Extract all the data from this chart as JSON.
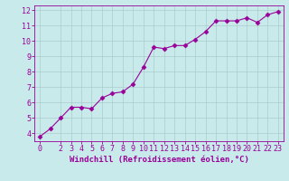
{
  "x": [
    0,
    1,
    2,
    3,
    4,
    5,
    6,
    7,
    8,
    9,
    10,
    11,
    12,
    13,
    14,
    15,
    16,
    17,
    18,
    19,
    20,
    21,
    22,
    23
  ],
  "y": [
    3.8,
    4.3,
    5.0,
    5.7,
    5.7,
    5.6,
    6.3,
    6.6,
    6.7,
    7.2,
    8.3,
    9.6,
    9.5,
    9.7,
    9.7,
    10.1,
    10.6,
    11.3,
    11.3,
    11.3,
    11.5,
    11.2,
    11.7,
    11.9
  ],
  "line_color": "#990099",
  "marker": "D",
  "marker_size": 2.5,
  "background_color": "#c8eaea",
  "grid_color": "#aacccc",
  "xlabel": "Windchill (Refroidissement éolien,°C)",
  "ylabel": "",
  "xlim": [
    -0.5,
    23.5
  ],
  "ylim": [
    3.5,
    12.3
  ],
  "yticks": [
    4,
    5,
    6,
    7,
    8,
    9,
    10,
    11,
    12
  ],
  "xticks": [
    0,
    2,
    3,
    4,
    5,
    6,
    7,
    8,
    9,
    10,
    11,
    12,
    13,
    14,
    15,
    16,
    17,
    18,
    19,
    20,
    21,
    22,
    23
  ],
  "tick_color": "#990099",
  "label_color": "#990099",
  "label_fontsize": 6.5,
  "tick_fontsize": 6.0
}
